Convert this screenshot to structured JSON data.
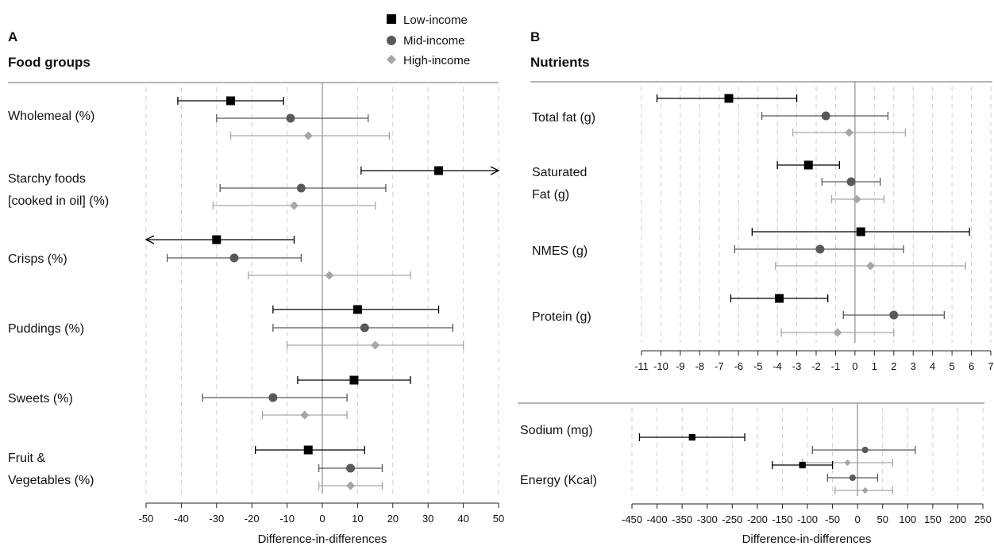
{
  "legend": [
    {
      "label": "Low-income",
      "color": "#000000",
      "marker": "square"
    },
    {
      "label": "Mid-income",
      "color": "#595959",
      "marker": "circle"
    },
    {
      "label": "High-income",
      "color": "#a6a6a6",
      "marker": "diamond"
    }
  ],
  "chart_data": [
    {
      "type": "forest",
      "panel": "A",
      "title": "Food groups",
      "xlabel": "Difference-in-differences",
      "xlim": [
        -50,
        50
      ],
      "xticks": [
        -50,
        -40,
        -30,
        -20,
        -10,
        0,
        10,
        20,
        30,
        40,
        50
      ],
      "grid": true,
      "rows": [
        {
          "label": [
            "Wholemeal (%)"
          ],
          "estimates": [
            {
              "group": "Low-income",
              "value": -26,
              "low": -41,
              "high": -11
            },
            {
              "group": "Mid-income",
              "value": -9,
              "low": -30,
              "high": 13
            },
            {
              "group": "High-income",
              "value": -4,
              "low": -26,
              "high": 19
            }
          ]
        },
        {
          "label": [
            "Starchy foods",
            "[cooked in oil] (%)"
          ],
          "estimates": [
            {
              "group": "Low-income",
              "value": 33,
              "low": 11,
              "high": 50,
              "arrow_high": true
            },
            {
              "group": "Mid-income",
              "value": -6,
              "low": -29,
              "high": 18
            },
            {
              "group": "High-income",
              "value": -8,
              "low": -31,
              "high": 15
            }
          ]
        },
        {
          "label": [
            "Crisps  (%)"
          ],
          "estimates": [
            {
              "group": "Low-income",
              "value": -30,
              "low": -50,
              "high": -8,
              "arrow_low": true
            },
            {
              "group": "Mid-income",
              "value": -25,
              "low": -44,
              "high": -6
            },
            {
              "group": "High-income",
              "value": 2,
              "low": -21,
              "high": 25
            }
          ]
        },
        {
          "label": [
            "Puddings  (%)"
          ],
          "estimates": [
            {
              "group": "Low-income",
              "value": 10,
              "low": -14,
              "high": 33
            },
            {
              "group": "Mid-income",
              "value": 12,
              "low": -14,
              "high": 37
            },
            {
              "group": "High-income",
              "value": 15,
              "low": -10,
              "high": 40
            }
          ]
        },
        {
          "label": [
            "Sweets  (%)"
          ],
          "estimates": [
            {
              "group": "Low-income",
              "value": 9,
              "low": -7,
              "high": 25
            },
            {
              "group": "Mid-income",
              "value": -14,
              "low": -34,
              "high": 7
            },
            {
              "group": "High-income",
              "value": -5,
              "low": -17,
              "high": 7
            }
          ]
        },
        {
          "label": [
            "Fruit &",
            "Vegetables  (%)"
          ],
          "estimates": [
            {
              "group": "Low-income",
              "value": -4,
              "low": -19,
              "high": 12
            },
            {
              "group": "Mid-income",
              "value": 8,
              "low": -1,
              "high": 17
            },
            {
              "group": "High-income",
              "value": 8,
              "low": -1,
              "high": 17
            }
          ]
        }
      ]
    },
    {
      "type": "forest",
      "panel": "B",
      "title": "Nutrients",
      "xlabel": "",
      "xlim": [
        -11,
        7
      ],
      "xticks": [
        -11,
        -10,
        -9,
        -8,
        -7,
        -6,
        -5,
        -4,
        -3,
        -2,
        -1,
        0,
        1,
        2,
        3,
        4,
        5,
        6,
        7
      ],
      "grid": true,
      "rows": [
        {
          "label": [
            "Total fat (g)"
          ],
          "estimates": [
            {
              "group": "Low-income",
              "value": -6.5,
              "low": -10.2,
              "high": -3
            },
            {
              "group": "Mid-income",
              "value": -1.5,
              "low": -4.8,
              "high": 1.7
            },
            {
              "group": "High-income",
              "value": -0.3,
              "low": -3.2,
              "high": 2.6
            }
          ]
        },
        {
          "label": [
            "Saturated",
            "Fat (g)"
          ],
          "estimates": [
            {
              "group": "Low-income",
              "value": -2.4,
              "low": -4,
              "high": -0.8
            },
            {
              "group": "Mid-income",
              "value": -0.2,
              "low": -1.7,
              "high": 1.3
            },
            {
              "group": "High-income",
              "value": 0.1,
              "low": -1.2,
              "high": 1.5
            }
          ]
        },
        {
          "label": [
            "NMES (g)"
          ],
          "estimates": [
            {
              "group": "Low-income",
              "value": 0.3,
              "low": -5.3,
              "high": 5.9
            },
            {
              "group": "Mid-income",
              "value": -1.8,
              "low": -6.2,
              "high": 2.5
            },
            {
              "group": "High-income",
              "value": 0.8,
              "low": -4.1,
              "high": 5.7
            }
          ]
        },
        {
          "label": [
            "Protein (g)"
          ],
          "estimates": [
            {
              "group": "Low-income",
              "value": -3.9,
              "low": -6.4,
              "high": -1.4
            },
            {
              "group": "Mid-income",
              "value": 2,
              "low": -0.6,
              "high": 4.6
            },
            {
              "group": "High-income",
              "value": -0.9,
              "low": -3.8,
              "high": 2
            }
          ]
        }
      ]
    },
    {
      "type": "forest",
      "panel": "B",
      "title": "",
      "xlabel": "Difference-in-differences",
      "xlim": [
        -450,
        250
      ],
      "xticks": [
        -450,
        -400,
        -350,
        -300,
        -250,
        -200,
        -150,
        -100,
        -50,
        0,
        50,
        100,
        150,
        200,
        250
      ],
      "grid": true,
      "rows": [
        {
          "label": [
            "Sodium (mg)"
          ],
          "estimates": [
            {
              "group": "Low-income",
              "value": -330,
              "low": -435,
              "high": -225
            },
            {
              "group": "Mid-income",
              "value": 15,
              "low": -90,
              "high": 115
            },
            {
              "group": "High-income",
              "value": -20,
              "low": -110,
              "high": 70
            }
          ]
        },
        {
          "label": [
            "Energy (Kcal)"
          ],
          "estimates": [
            {
              "group": "Low-income",
              "value": -110,
              "low": -170,
              "high": -50
            },
            {
              "group": "Mid-income",
              "value": -10,
              "low": -60,
              "high": 40
            },
            {
              "group": "High-income",
              "value": 15,
              "low": -45,
              "high": 70
            }
          ]
        }
      ]
    }
  ]
}
